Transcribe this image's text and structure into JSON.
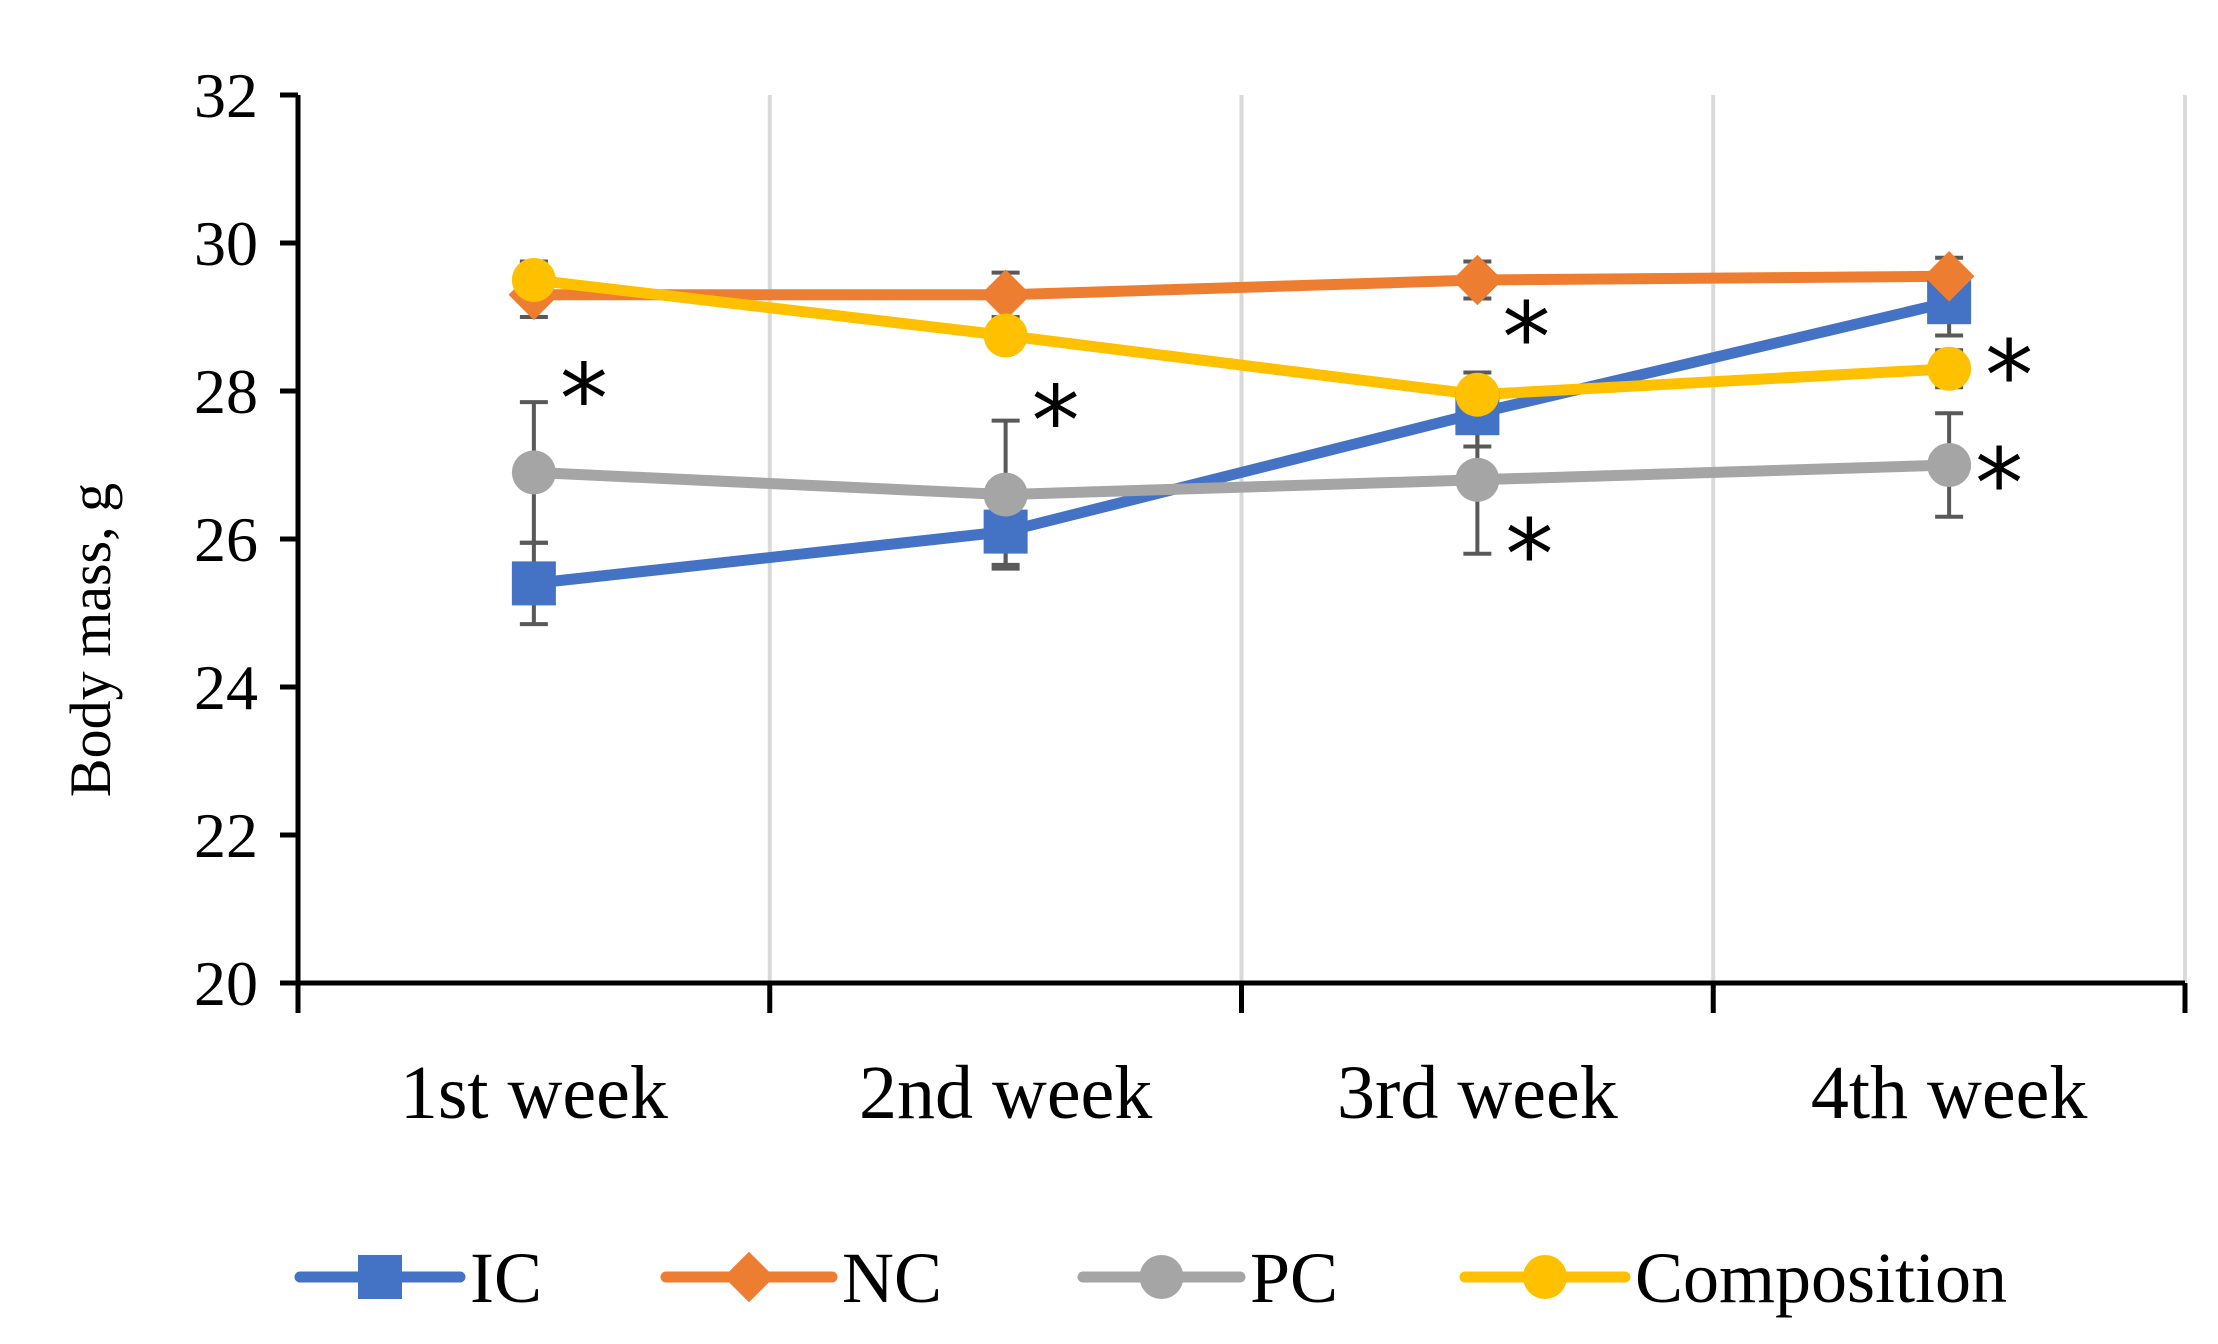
{
  "chart_data": {
    "type": "line",
    "title": "",
    "xlabel": "",
    "ylabel": "Body mass, g",
    "ylim": [
      20,
      32
    ],
    "yticks": [
      "20",
      "22",
      "24",
      "26",
      "28",
      "30",
      "32"
    ],
    "categories": [
      "1st week",
      "2nd week",
      "3rd week",
      "4th week"
    ],
    "grid": "vertical",
    "legend_position": "bottom",
    "significance_marker": "*",
    "series": [
      {
        "name": "IC",
        "color": "#4472C4",
        "marker": "square",
        "values": [
          25.4,
          26.1,
          27.7,
          29.2
        ],
        "errors": [
          0.55,
          0.45,
          0.45,
          0.45
        ],
        "significant": [
          false,
          false,
          true,
          false
        ]
      },
      {
        "name": "NC",
        "color": "#ED7D31",
        "marker": "diamond",
        "values": [
          29.3,
          29.3,
          29.5,
          29.55
        ],
        "errors": [
          0.3,
          0.3,
          0.25,
          0.25
        ],
        "significant": [
          false,
          false,
          false,
          false
        ]
      },
      {
        "name": "PC",
        "color": "#A5A5A5",
        "marker": "circle",
        "values": [
          26.9,
          26.6,
          26.8,
          27.0
        ],
        "errors": [
          0.95,
          1.0,
          1.0,
          0.7
        ],
        "significant": [
          true,
          true,
          true,
          true
        ]
      },
      {
        "name": "Composition",
        "color": "#FFC000",
        "marker": "circle",
        "values": [
          29.5,
          28.75,
          27.95,
          28.3
        ],
        "errors": [
          0.25,
          0.2,
          0.3,
          0.25
        ],
        "significant": [
          false,
          false,
          false,
          true
        ]
      }
    ]
  }
}
